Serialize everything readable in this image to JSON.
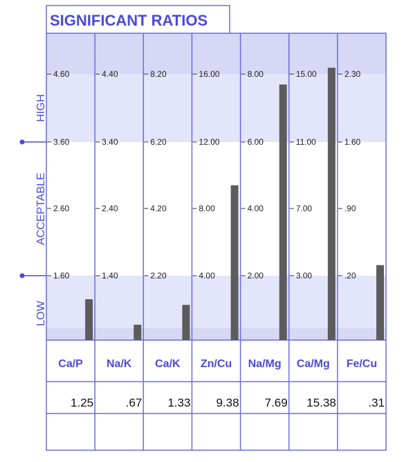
{
  "chart_data": {
    "type": "bar",
    "title": "SIGNIFICANT RATIOS",
    "zones": [
      "HIGH",
      "ACCEPTABLE",
      "LOW"
    ],
    "categories": [
      "Ca/P",
      "Na/K",
      "Ca/K",
      "Zn/Cu",
      "Na/Mg",
      "Ca/Mg",
      "Fe/Cu"
    ],
    "values": [
      1.25,
      0.67,
      1.33,
      9.38,
      7.69,
      15.38,
      0.31
    ],
    "value_labels": [
      "1.25",
      ".67",
      "1.33",
      "9.38",
      "7.69",
      "15.38",
      ".31"
    ],
    "ticks": [
      [
        "4.60",
        "3.60",
        "2.60",
        "1.60"
      ],
      [
        "4.40",
        "3.40",
        "2.40",
        "1.40"
      ],
      [
        "8.20",
        "6.20",
        "4.20",
        "2.20"
      ],
      [
        "16.00",
        "12.00",
        "8.00",
        "4.00"
      ],
      [
        "8.00",
        "6.00",
        "4.00",
        "2.00"
      ],
      [
        "15.00",
        "11.00",
        "7.00",
        "3.00"
      ],
      [
        "2.30",
        "1.60",
        ".90",
        ".20"
      ]
    ],
    "tick_values": [
      [
        4.6,
        3.6,
        2.6,
        1.6
      ],
      [
        4.4,
        3.4,
        2.4,
        1.4
      ],
      [
        8.2,
        6.2,
        4.2,
        2.2
      ],
      [
        16,
        12,
        8,
        4
      ],
      [
        8,
        6,
        4,
        2
      ],
      [
        15,
        11,
        7,
        3
      ],
      [
        2.3,
        1.6,
        0.9,
        0.2
      ]
    ],
    "grid": true,
    "colors": {
      "border": "#6a6ae0",
      "title": "#4a4adc",
      "band_dark": "#d6d8f6",
      "band_light": "#e3e5fb",
      "bar": "#5c5c5c",
      "label": "#4a4adc"
    }
  }
}
